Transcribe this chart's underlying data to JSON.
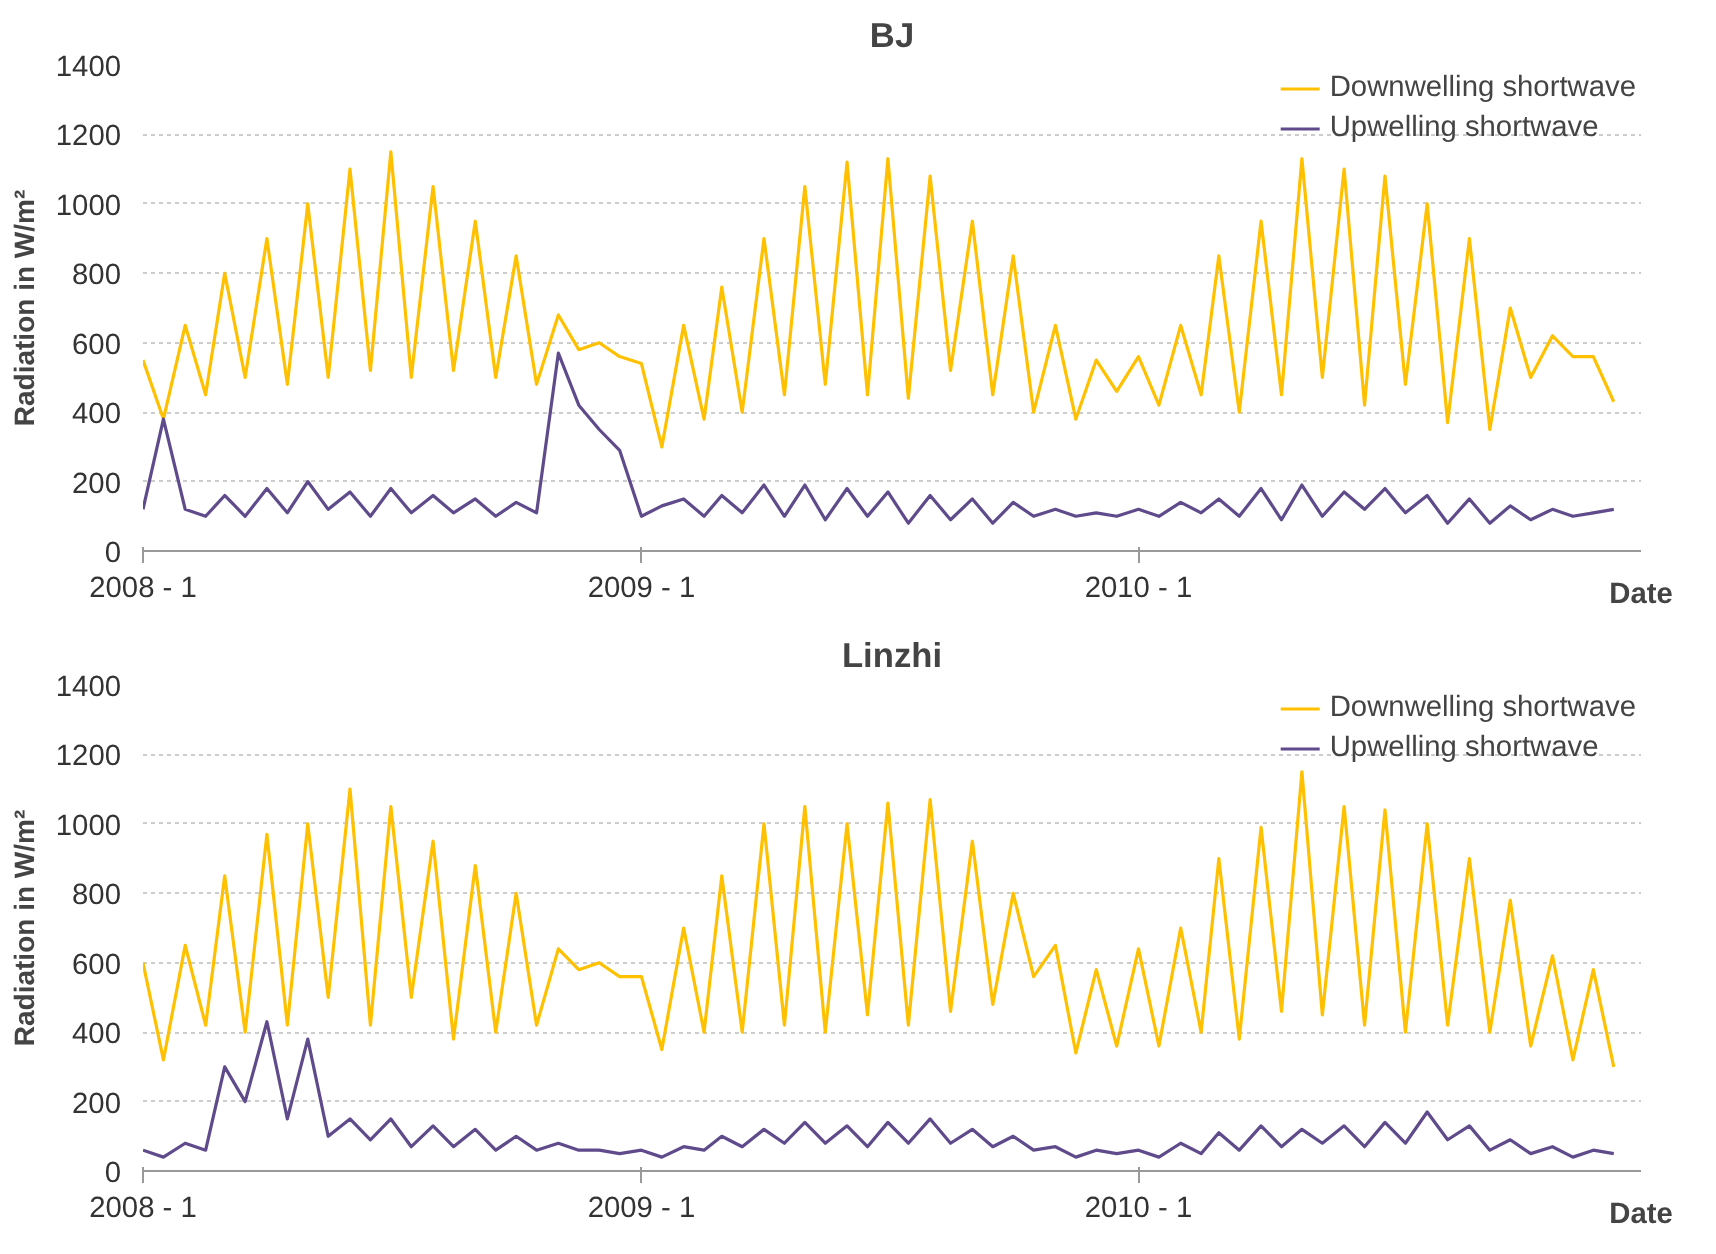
{
  "chart_data": [
    {
      "type": "line",
      "title": "BJ",
      "ylabel": "Radiation in W/m²",
      "xlabel": "Date",
      "x": [
        "2008-01-01",
        "2008-01-16",
        "2008-02-01",
        "2008-02-16",
        "2008-03-01",
        "2008-03-16",
        "2008-04-01",
        "2008-04-16",
        "2008-05-01",
        "2008-05-16",
        "2008-06-01",
        "2008-06-16",
        "2008-07-01",
        "2008-07-16",
        "2008-08-01",
        "2008-08-16",
        "2008-09-01",
        "2008-09-16",
        "2008-10-01",
        "2008-10-16",
        "2008-11-01",
        "2008-11-16",
        "2008-12-01",
        "2008-12-16",
        "2009-01-01",
        "2009-01-16",
        "2009-02-01",
        "2009-02-16",
        "2009-03-01",
        "2009-03-16",
        "2009-04-01",
        "2009-04-16",
        "2009-05-01",
        "2009-05-16",
        "2009-06-01",
        "2009-06-16",
        "2009-07-01",
        "2009-07-16",
        "2009-08-01",
        "2009-08-16",
        "2009-09-01",
        "2009-09-16",
        "2009-10-01",
        "2009-10-16",
        "2009-11-01",
        "2009-11-16",
        "2009-12-01",
        "2009-12-16",
        "2010-01-01",
        "2010-01-16",
        "2010-02-01",
        "2010-02-16",
        "2010-03-01",
        "2010-03-16",
        "2010-04-01",
        "2010-04-16",
        "2010-05-01",
        "2010-05-16",
        "2010-06-01",
        "2010-06-16",
        "2010-07-01",
        "2010-07-16",
        "2010-08-01",
        "2010-08-16",
        "2010-09-01",
        "2010-09-16",
        "2010-10-01",
        "2010-10-16",
        "2010-11-01",
        "2010-11-16",
        "2010-12-01",
        "2010-12-16"
      ],
      "series": [
        {
          "name": "Downwelling shortwave",
          "color": "#ffc000",
          "values": [
            550,
            380,
            650,
            450,
            800,
            500,
            900,
            480,
            1000,
            500,
            1100,
            520,
            1150,
            500,
            1050,
            520,
            950,
            500,
            850,
            480,
            680,
            580,
            600,
            560,
            540,
            300,
            650,
            380,
            760,
            400,
            900,
            450,
            1050,
            480,
            1120,
            450,
            1130,
            440,
            1080,
            520,
            950,
            450,
            850,
            400,
            650,
            380,
            550,
            460,
            560,
            420,
            650,
            450,
            850,
            400,
            950,
            450,
            1130,
            500,
            1100,
            420,
            1080,
            480,
            1000,
            370,
            900,
            350,
            700,
            500,
            620,
            560,
            560,
            430
          ]
        },
        {
          "name": "Upwelling shortwave",
          "color": "#5f4b8b",
          "values": [
            120,
            380,
            120,
            100,
            160,
            100,
            180,
            110,
            200,
            120,
            170,
            100,
            180,
            110,
            160,
            110,
            150,
            100,
            140,
            110,
            570,
            420,
            350,
            290,
            100,
            130,
            150,
            100,
            160,
            110,
            190,
            100,
            190,
            90,
            180,
            100,
            170,
            80,
            160,
            90,
            150,
            80,
            140,
            100,
            120,
            100,
            110,
            100,
            120,
            100,
            140,
            110,
            150,
            100,
            180,
            90,
            190,
            100,
            170,
            120,
            180,
            110,
            160,
            80,
            150,
            80,
            130,
            90,
            120,
            100,
            110,
            120
          ]
        }
      ],
      "xlim": [
        "2008-01-01",
        "2011-01-05"
      ],
      "xticks": [
        {
          "value": "2008-01-01",
          "label": "2008 - 1"
        },
        {
          "value": "2009-01-01",
          "label": "2009 - 1"
        },
        {
          "value": "2010-01-01",
          "label": "2010 - 1"
        }
      ],
      "ylim": [
        0,
        1400
      ],
      "yticks": [
        0,
        200,
        400,
        600,
        800,
        1000,
        1200,
        1400
      ],
      "grid": "y",
      "legend": "top right"
    },
    {
      "type": "line",
      "title": "Linzhi",
      "ylabel": "Radiation in W/m²",
      "xlabel": "Date",
      "x": [
        "2008-01-01",
        "2008-01-16",
        "2008-02-01",
        "2008-02-16",
        "2008-03-01",
        "2008-03-16",
        "2008-04-01",
        "2008-04-16",
        "2008-05-01",
        "2008-05-16",
        "2008-06-01",
        "2008-06-16",
        "2008-07-01",
        "2008-07-16",
        "2008-08-01",
        "2008-08-16",
        "2008-09-01",
        "2008-09-16",
        "2008-10-01",
        "2008-10-16",
        "2008-11-01",
        "2008-11-16",
        "2008-12-01",
        "2008-12-16",
        "2009-01-01",
        "2009-01-16",
        "2009-02-01",
        "2009-02-16",
        "2009-03-01",
        "2009-03-16",
        "2009-04-01",
        "2009-04-16",
        "2009-05-01",
        "2009-05-16",
        "2009-06-01",
        "2009-06-16",
        "2009-07-01",
        "2009-07-16",
        "2009-08-01",
        "2009-08-16",
        "2009-09-01",
        "2009-09-16",
        "2009-10-01",
        "2009-10-16",
        "2009-11-01",
        "2009-11-16",
        "2009-12-01",
        "2009-12-16",
        "2010-01-01",
        "2010-01-16",
        "2010-02-01",
        "2010-02-16",
        "2010-03-01",
        "2010-03-16",
        "2010-04-01",
        "2010-04-16",
        "2010-05-01",
        "2010-05-16",
        "2010-06-01",
        "2010-06-16",
        "2010-07-01",
        "2010-07-16",
        "2010-08-01",
        "2010-08-16",
        "2010-09-01",
        "2010-09-16",
        "2010-10-01",
        "2010-10-16",
        "2010-11-01",
        "2010-11-16",
        "2010-12-01",
        "2010-12-16"
      ],
      "series": [
        {
          "name": "Downwelling shortwave",
          "color": "#ffc000",
          "values": [
            600,
            320,
            650,
            420,
            850,
            400,
            970,
            420,
            1000,
            500,
            1100,
            420,
            1050,
            500,
            950,
            380,
            880,
            400,
            800,
            420,
            640,
            580,
            600,
            560,
            560,
            350,
            700,
            400,
            850,
            400,
            1000,
            420,
            1050,
            400,
            1000,
            450,
            1060,
            420,
            1070,
            460,
            950,
            480,
            800,
            560,
            650,
            340,
            580,
            360,
            640,
            360,
            700,
            400,
            900,
            380,
            990,
            460,
            1150,
            450,
            1050,
            420,
            1040,
            400,
            1000,
            420,
            900,
            400,
            780,
            360,
            620,
            320,
            580,
            300
          ]
        },
        {
          "name": "Upwelling shortwave",
          "color": "#5f4b8b",
          "values": [
            60,
            40,
            80,
            60,
            300,
            200,
            430,
            150,
            380,
            100,
            150,
            90,
            150,
            70,
            130,
            70,
            120,
            60,
            100,
            60,
            80,
            60,
            60,
            50,
            60,
            40,
            70,
            60,
            100,
            70,
            120,
            80,
            140,
            80,
            130,
            70,
            140,
            80,
            150,
            80,
            120,
            70,
            100,
            60,
            70,
            40,
            60,
            50,
            60,
            40,
            80,
            50,
            110,
            60,
            130,
            70,
            120,
            80,
            130,
            70,
            140,
            80,
            170,
            90,
            130,
            60,
            90,
            50,
            70,
            40,
            60,
            50
          ]
        }
      ],
      "xlim": [
        "2008-01-01",
        "2011-01-05"
      ],
      "xticks": [
        {
          "value": "2008-01-01",
          "label": "2008 - 1"
        },
        {
          "value": "2009-01-01",
          "label": "2009 - 1"
        },
        {
          "value": "2010-01-01",
          "label": "2010 - 1"
        }
      ],
      "ylim": [
        0,
        1400
      ],
      "yticks": [
        0,
        200,
        400,
        600,
        800,
        1000,
        1200,
        1400
      ],
      "grid": "y",
      "legend": "top right"
    }
  ]
}
